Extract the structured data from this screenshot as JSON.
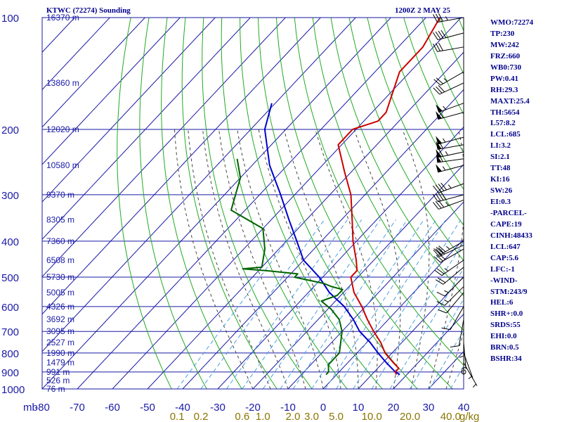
{
  "header": {
    "title": "KTWC (72274) Sounding",
    "time": "1200Z  2 MAY 25"
  },
  "params": [
    "WMO:72274",
    "TP:230",
    "MW:242",
    "FRZ:660",
    "WB0:730",
    "PW:0.41",
    "RH:29.3",
    "MAXT:25.4",
    "TH:5654",
    "L57:8.2",
    "LCL:685",
    "LI:3.2",
    "SI:2.1",
    "TT:48",
    "KI:16",
    "SW:26",
    "EI:0.3",
    "-PARCEL-",
    "CAPE:19",
    "CINH:48433",
    "LCL:647",
    "CAP:5.6",
    "LFC:-1",
    "-WIND-",
    "STM:243/9",
    "HEL:6",
    "SHR+:0.0",
    "SRDS:55",
    "EHI:0.0",
    "BRN:0.5",
    "BSHR:34"
  ],
  "colors": {
    "grid": "#1a1aa6",
    "dry_adiabat": "#22aa22",
    "moist_adiabat": "#444444",
    "mixing_ratio": "#4aa0e0",
    "temperature": "#cc0000",
    "dewpoint": "#006400",
    "parcel": "#0000cc",
    "label": "#1a1aa6",
    "mixing_label": "#8b7500",
    "text": "#00008b"
  },
  "chart_data": {
    "type": "line",
    "title": "KTWC (72274) Sounding",
    "xlabel": "",
    "ylabel": "mb",
    "pressure_axis": {
      "scale": "log",
      "ticks": [
        100,
        200,
        300,
        400,
        500,
        600,
        700,
        800,
        900,
        1000
      ]
    },
    "temperature_axis": {
      "skewed": true,
      "ticks": [
        -80,
        -70,
        -60,
        -50,
        -40,
        -30,
        -20,
        -10,
        0,
        10,
        20,
        30,
        40
      ],
      "tick_labels": [
        "-80",
        "-70",
        "-60",
        "-50",
        "-40",
        "-30",
        "-20",
        "-10",
        "0",
        "10",
        "20",
        "30",
        "40"
      ]
    },
    "pressure_tick_labels": [
      "100",
      "200",
      "300",
      "400",
      "500",
      "600",
      "700",
      "800",
      "900",
      "1000"
    ],
    "mb_label": "mb",
    "grid": true,
    "height_labels": [
      {
        "p": 100,
        "label": "16370 m"
      },
      {
        "p": 150,
        "label": "13860 m"
      },
      {
        "p": 200,
        "label": "12020 m"
      },
      {
        "p": 250,
        "label": "10580 m"
      },
      {
        "p": 300,
        "label": "9370 m"
      },
      {
        "p": 350,
        "label": "8305 m"
      },
      {
        "p": 400,
        "label": "7360 m"
      },
      {
        "p": 450,
        "label": "6508 m"
      },
      {
        "p": 500,
        "label": "5730 m"
      },
      {
        "p": 550,
        "label": "5005 m"
      },
      {
        "p": 600,
        "label": "4326 m"
      },
      {
        "p": 650,
        "label": "3692 m"
      },
      {
        "p": 700,
        "label": "3095 m"
      },
      {
        "p": 750,
        "label": "2527 m"
      },
      {
        "p": 800,
        "label": "1990 m"
      },
      {
        "p": 850,
        "label": "1479 m"
      },
      {
        "p": 900,
        "label": "991 m"
      },
      {
        "p": 950,
        "label": "526 m"
      },
      {
        "p": 1000,
        "label": "76 m"
      }
    ],
    "mixing_ratio_labels": [
      {
        "w": 0.1,
        "label": "0.1"
      },
      {
        "w": 0.2,
        "label": "0.2"
      },
      {
        "w": 0.6,
        "label": "0.6"
      },
      {
        "w": 1.0,
        "label": "1.0"
      },
      {
        "w": 2.0,
        "label": "2.0"
      },
      {
        "w": 3.0,
        "label": "3.0"
      },
      {
        "w": 5.0,
        "label": "5.0"
      },
      {
        "w": 10.0,
        "label": "10.0"
      },
      {
        "w": 20.0,
        "label": "20.0"
      },
      {
        "w": 40.0,
        "label": "40.0"
      }
    ],
    "mixing_unit": "g/kg",
    "dry_adiabats_theta_K": [
      230,
      240,
      250,
      260,
      270,
      280,
      290,
      300,
      310,
      320,
      330,
      340,
      350,
      360,
      370,
      380,
      390,
      400,
      410,
      420,
      430,
      440,
      450,
      460,
      470,
      480
    ],
    "moist_adiabats_C": [
      -20,
      -15,
      -10,
      -5,
      0,
      5,
      10,
      15,
      20,
      25,
      30,
      35
    ],
    "mixing_ratio_lines_gkg": [
      0.1,
      0.2,
      0.4,
      0.6,
      1.0,
      1.5,
      2.0,
      3.0,
      4.0,
      5.0,
      7.0,
      10.0,
      14.0,
      20.0,
      28.0,
      40.0
    ],
    "series": [
      {
        "name": "temperature",
        "points": [
          [
            100,
            -66
          ],
          [
            120,
            -63
          ],
          [
            140,
            -63
          ],
          [
            180,
            -56
          ],
          [
            190,
            -56
          ],
          [
            200,
            -61
          ],
          [
            220,
            -61
          ],
          [
            260,
            -52
          ],
          [
            300,
            -44
          ],
          [
            350,
            -37
          ],
          [
            400,
            -31
          ],
          [
            450,
            -25
          ],
          [
            480,
            -22
          ],
          [
            500,
            -22
          ],
          [
            550,
            -17
          ],
          [
            600,
            -11
          ],
          [
            650,
            -6
          ],
          [
            700,
            -1
          ],
          [
            750,
            4
          ],
          [
            800,
            8
          ],
          [
            850,
            13
          ],
          [
            880,
            16
          ],
          [
            900,
            16
          ],
          [
            915,
            17
          ]
        ]
      },
      {
        "name": "dewpoint",
        "points": [
          [
            240,
            -86
          ],
          [
            270,
            -80
          ],
          [
            330,
            -74
          ],
          [
            370,
            -60
          ],
          [
            420,
            -54
          ],
          [
            470,
            -50
          ],
          [
            475,
            -55
          ],
          [
            480,
            -48
          ],
          [
            490,
            -38
          ],
          [
            500,
            -38
          ],
          [
            520,
            -28
          ],
          [
            530,
            -25
          ],
          [
            540,
            -21
          ],
          [
            560,
            -21
          ],
          [
            580,
            -24
          ],
          [
            610,
            -19
          ],
          [
            650,
            -14
          ],
          [
            700,
            -10
          ],
          [
            800,
            -5
          ],
          [
            860,
            -5
          ],
          [
            900,
            -3
          ],
          [
            915,
            -3
          ]
        ]
      },
      {
        "name": "parcel",
        "points": [
          [
            170,
            -91
          ],
          [
            200,
            -86
          ],
          [
            250,
            -75
          ],
          [
            300,
            -64
          ],
          [
            350,
            -55
          ],
          [
            400,
            -47
          ],
          [
            450,
            -40
          ],
          [
            500,
            -31
          ],
          [
            550,
            -24
          ],
          [
            600,
            -16
          ],
          [
            650,
            -10
          ],
          [
            700,
            -5
          ],
          [
            750,
            1
          ],
          [
            800,
            6
          ],
          [
            850,
            11
          ],
          [
            900,
            16
          ],
          [
            915,
            18
          ]
        ]
      }
    ],
    "wind_barbs": [
      {
        "p": 100,
        "dir": 260,
        "spd": 35
      },
      {
        "p": 110,
        "dir": 255,
        "spd": 40
      },
      {
        "p": 120,
        "dir": 260,
        "spd": 30
      },
      {
        "p": 140,
        "dir": 240,
        "spd": 25
      },
      {
        "p": 150,
        "dir": 245,
        "spd": 30
      },
      {
        "p": 170,
        "dir": 250,
        "spd": 55
      },
      {
        "p": 180,
        "dir": 255,
        "spd": 60
      },
      {
        "p": 210,
        "dir": 255,
        "spd": 55
      },
      {
        "p": 220,
        "dir": 260,
        "spd": 60
      },
      {
        "p": 230,
        "dir": 258,
        "spd": 65
      },
      {
        "p": 240,
        "dir": 262,
        "spd": 60
      },
      {
        "p": 250,
        "dir": 255,
        "spd": 55
      },
      {
        "p": 280,
        "dir": 250,
        "spd": 45
      },
      {
        "p": 300,
        "dir": 255,
        "spd": 40
      },
      {
        "p": 310,
        "dir": 250,
        "spd": 35
      },
      {
        "p": 400,
        "dir": 240,
        "spd": 35
      },
      {
        "p": 410,
        "dir": 245,
        "spd": 30
      },
      {
        "p": 420,
        "dir": 240,
        "spd": 30
      },
      {
        "p": 450,
        "dir": 235,
        "spd": 25
      },
      {
        "p": 470,
        "dir": 230,
        "spd": 20
      },
      {
        "p": 500,
        "dir": 225,
        "spd": 15
      },
      {
        "p": 530,
        "dir": 225,
        "spd": 15
      },
      {
        "p": 550,
        "dir": 220,
        "spd": 10
      },
      {
        "p": 600,
        "dir": 210,
        "spd": 10
      },
      {
        "p": 650,
        "dir": 190,
        "spd": 10
      },
      {
        "p": 700,
        "dir": 180,
        "spd": 5
      },
      {
        "p": 750,
        "dir": 175,
        "spd": 5
      },
      {
        "p": 800,
        "dir": 160,
        "spd": 5
      },
      {
        "p": 850,
        "dir": 150,
        "spd": 5
      },
      {
        "p": 900,
        "dir": 0,
        "spd": 0
      }
    ]
  }
}
